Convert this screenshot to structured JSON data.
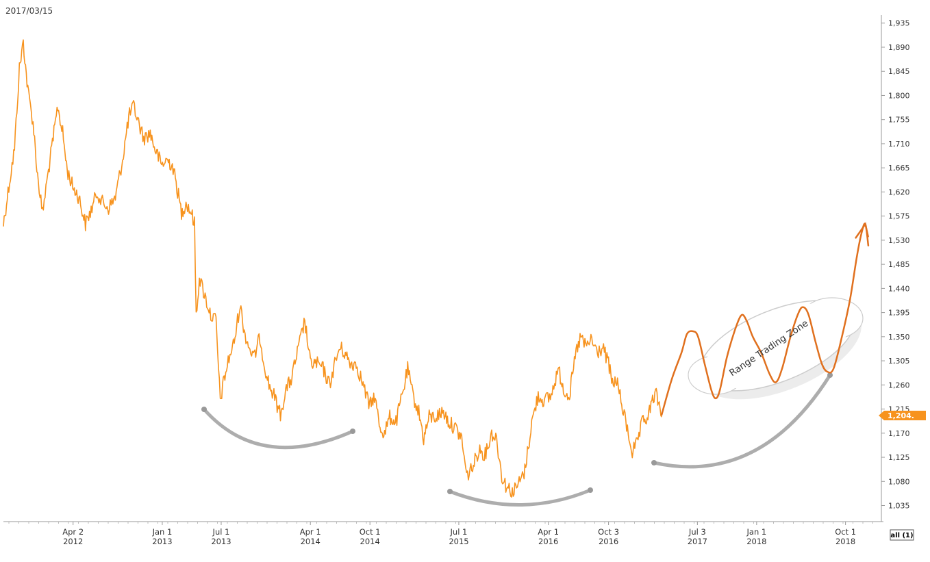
{
  "header": {
    "date": "2017/03/15"
  },
  "colors": {
    "price_line": "#f7931e",
    "projection_line": "#e0701e",
    "arc": "#999999",
    "badge": "#f7931e",
    "axis": "#999999"
  },
  "chart_data": {
    "type": "line",
    "title": "",
    "xlabel": "",
    "ylabel": "",
    "ylim": [
      1005,
      1950
    ],
    "xlim": [
      "2011-09-01",
      "2019-01-15"
    ],
    "y_ticks": [
      "1,935",
      "1,890",
      "1,845",
      "1,800",
      "1,755",
      "1,710",
      "1,665",
      "1,620",
      "1,575",
      "1,530",
      "1,485",
      "1,440",
      "1,395",
      "1,350",
      "1,305",
      "1,260",
      "1,215",
      "1,170",
      "1,125",
      "1,080",
      "1,035"
    ],
    "x_ticks": [
      {
        "date": "2012-04-02",
        "label1": "Apr 2",
        "label2": "2012"
      },
      {
        "date": "2013-01-01",
        "label1": "Jan 1",
        "label2": "2013"
      },
      {
        "date": "2013-07-01",
        "label1": "Jul 1",
        "label2": "2013"
      },
      {
        "date": "2014-04-01",
        "label1": "Apr 1",
        "label2": "2014"
      },
      {
        "date": "2014-10-01",
        "label1": "Oct 1",
        "label2": "2014"
      },
      {
        "date": "2015-07-01",
        "label1": "Jul 1",
        "label2": "2015"
      },
      {
        "date": "2016-04-01",
        "label1": "Apr 1",
        "label2": "2016"
      },
      {
        "date": "2016-10-03",
        "label1": "Oct 3",
        "label2": "2016"
      },
      {
        "date": "2017-07-03",
        "label1": "Jul 3",
        "label2": "2017"
      },
      {
        "date": "2018-01-01",
        "label1": "Jan 1",
        "label2": "2018"
      },
      {
        "date": "2018-10-01",
        "label1": "Oct 1",
        "label2": "2018"
      }
    ],
    "last_value_label": "1,204.",
    "series": [
      {
        "values": [
          [
            "2011-09-01",
            1560
          ],
          [
            "2011-09-20",
            1640
          ],
          [
            "2011-10-05",
            1700
          ],
          [
            "2011-10-20",
            1850
          ],
          [
            "2011-11-01",
            1900
          ],
          [
            "2011-11-15",
            1810
          ],
          [
            "2011-12-01",
            1750
          ],
          [
            "2011-12-15",
            1650
          ],
          [
            "2011-12-30",
            1580
          ],
          [
            "2012-01-15",
            1650
          ],
          [
            "2012-02-01",
            1720
          ],
          [
            "2012-02-15",
            1780
          ],
          [
            "2012-03-01",
            1730
          ],
          [
            "2012-03-15",
            1660
          ],
          [
            "2012-04-01",
            1630
          ],
          [
            "2012-04-20",
            1610
          ],
          [
            "2012-05-10",
            1560
          ],
          [
            "2012-05-30",
            1590
          ],
          [
            "2012-06-15",
            1620
          ],
          [
            "2012-07-01",
            1600
          ],
          [
            "2012-07-20",
            1590
          ],
          [
            "2012-08-10",
            1610
          ],
          [
            "2012-09-01",
            1680
          ],
          [
            "2012-09-20",
            1760
          ],
          [
            "2012-10-05",
            1780
          ],
          [
            "2012-10-20",
            1750
          ],
          [
            "2012-11-05",
            1720
          ],
          [
            "2012-11-25",
            1730
          ],
          [
            "2012-12-10",
            1700
          ],
          [
            "2012-12-30",
            1670
          ],
          [
            "2013-01-15",
            1680
          ],
          [
            "2013-02-01",
            1670
          ],
          [
            "2013-02-15",
            1630
          ],
          [
            "2013-03-01",
            1580
          ],
          [
            "2013-03-15",
            1600
          ],
          [
            "2013-04-01",
            1580
          ],
          [
            "2013-04-10",
            1560
          ],
          [
            "2013-04-15",
            1390
          ],
          [
            "2013-04-25",
            1460
          ],
          [
            "2013-05-10",
            1430
          ],
          [
            "2013-05-30",
            1390
          ],
          [
            "2013-06-15",
            1380
          ],
          [
            "2013-06-28",
            1230
          ],
          [
            "2013-07-10",
            1270
          ],
          [
            "2013-07-25",
            1310
          ],
          [
            "2013-08-10",
            1340
          ],
          [
            "2013-08-28",
            1410
          ],
          [
            "2013-09-10",
            1360
          ],
          [
            "2013-09-25",
            1330
          ],
          [
            "2013-10-10",
            1310
          ],
          [
            "2013-10-28",
            1350
          ],
          [
            "2013-11-10",
            1300
          ],
          [
            "2013-11-25",
            1260
          ],
          [
            "2013-12-10",
            1240
          ],
          [
            "2013-12-30",
            1205
          ],
          [
            "2014-01-15",
            1250
          ],
          [
            "2014-02-01",
            1270
          ],
          [
            "2014-02-20",
            1320
          ],
          [
            "2014-03-15",
            1380
          ],
          [
            "2014-04-01",
            1300
          ],
          [
            "2014-04-20",
            1300
          ],
          [
            "2014-05-10",
            1290
          ],
          [
            "2014-05-30",
            1260
          ],
          [
            "2014-06-15",
            1300
          ],
          [
            "2014-07-01",
            1330
          ],
          [
            "2014-07-15",
            1320
          ],
          [
            "2014-08-01",
            1300
          ],
          [
            "2014-08-20",
            1300
          ],
          [
            "2014-09-10",
            1260
          ],
          [
            "2014-09-30",
            1220
          ],
          [
            "2014-10-15",
            1240
          ],
          [
            "2014-11-01",
            1180
          ],
          [
            "2014-11-15",
            1170
          ],
          [
            "2014-12-01",
            1200
          ],
          [
            "2014-12-20",
            1190
          ],
          [
            "2015-01-15",
            1260
          ],
          [
            "2015-01-25",
            1290
          ],
          [
            "2015-02-10",
            1240
          ],
          [
            "2015-02-28",
            1210
          ],
          [
            "2015-03-15",
            1160
          ],
          [
            "2015-04-01",
            1200
          ],
          [
            "2015-04-20",
            1200
          ],
          [
            "2015-05-15",
            1210
          ],
          [
            "2015-06-01",
            1190
          ],
          [
            "2015-06-20",
            1180
          ],
          [
            "2015-07-10",
            1160
          ],
          [
            "2015-07-25",
            1090
          ],
          [
            "2015-08-15",
            1110
          ],
          [
            "2015-09-01",
            1140
          ],
          [
            "2015-09-20",
            1130
          ],
          [
            "2015-10-10",
            1170
          ],
          [
            "2015-10-25",
            1160
          ],
          [
            "2015-11-10",
            1090
          ],
          [
            "2015-11-25",
            1070
          ],
          [
            "2015-12-15",
            1060
          ],
          [
            "2016-01-05",
            1080
          ],
          [
            "2016-01-20",
            1100
          ],
          [
            "2016-02-10",
            1190
          ],
          [
            "2016-03-01",
            1240
          ],
          [
            "2016-03-20",
            1230
          ],
          [
            "2016-04-10",
            1240
          ],
          [
            "2016-05-01",
            1290
          ],
          [
            "2016-05-20",
            1250
          ],
          [
            "2016-06-05",
            1240
          ],
          [
            "2016-06-25",
            1320
          ],
          [
            "2016-07-10",
            1350
          ],
          [
            "2016-07-25",
            1330
          ],
          [
            "2016-08-10",
            1345
          ],
          [
            "2016-08-30",
            1320
          ],
          [
            "2016-09-15",
            1330
          ],
          [
            "2016-10-03",
            1300
          ],
          [
            "2016-10-15",
            1260
          ],
          [
            "2016-10-28",
            1270
          ],
          [
            "2016-11-10",
            1230
          ],
          [
            "2016-11-25",
            1190
          ],
          [
            "2016-12-15",
            1135
          ],
          [
            "2016-12-30",
            1150
          ],
          [
            "2017-01-15",
            1190
          ],
          [
            "2017-02-01",
            1200
          ],
          [
            "2017-02-20",
            1240
          ],
          [
            "2017-03-01",
            1240
          ],
          [
            "2017-03-15",
            1200
          ]
        ]
      },
      {
        "values": [
          [
            "2017-03-15",
            1204
          ],
          [
            "2017-04-15",
            1270
          ],
          [
            "2017-05-15",
            1320
          ],
          [
            "2017-06-01",
            1355
          ],
          [
            "2017-06-20",
            1360
          ],
          [
            "2017-07-05",
            1350
          ],
          [
            "2017-07-25",
            1300
          ],
          [
            "2017-08-15",
            1250
          ],
          [
            "2017-08-28",
            1235
          ],
          [
            "2017-09-10",
            1250
          ],
          [
            "2017-10-01",
            1310
          ],
          [
            "2017-10-25",
            1360
          ],
          [
            "2017-11-15",
            1390
          ],
          [
            "2017-12-01",
            1380
          ],
          [
            "2017-12-20",
            1350
          ],
          [
            "2018-01-15",
            1320
          ],
          [
            "2018-02-10",
            1280
          ],
          [
            "2018-03-01",
            1265
          ],
          [
            "2018-03-20",
            1290
          ],
          [
            "2018-04-15",
            1350
          ],
          [
            "2018-05-10",
            1395
          ],
          [
            "2018-05-25",
            1405
          ],
          [
            "2018-06-10",
            1390
          ],
          [
            "2018-07-01",
            1340
          ],
          [
            "2018-07-20",
            1300
          ],
          [
            "2018-08-05",
            1285
          ],
          [
            "2018-08-25",
            1290
          ],
          [
            "2018-09-20",
            1350
          ],
          [
            "2018-10-15",
            1420
          ],
          [
            "2018-11-05",
            1500
          ],
          [
            "2018-11-20",
            1545
          ],
          [
            "2018-12-01",
            1560
          ],
          [
            "2018-12-10",
            1520
          ]
        ]
      }
    ],
    "annotations": [
      {
        "text": "Range Trading Zone"
      }
    ]
  },
  "controls": {
    "all_button": "all (1)"
  }
}
